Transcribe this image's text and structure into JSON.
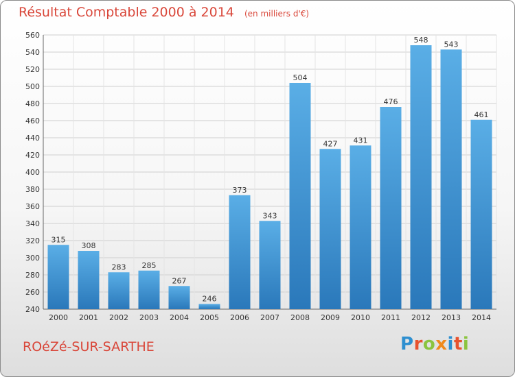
{
  "header": {
    "title": "Résultat Comptable 2000 à 2014",
    "unit": "(en milliers d'€)"
  },
  "footer": {
    "commune": "ROéZé-SUR-SARTHE",
    "logo_text": "Proxiti",
    "logo_colors": [
      "#2e8fd0",
      "#e8522e",
      "#8bc43f",
      "#f08a1c",
      "#2e8fd0",
      "#e8522e",
      "#8bc43f"
    ]
  },
  "colors": {
    "bar_light": "#5aaee6",
    "bar_dark": "#2a78ba",
    "title": "#d9473a",
    "grid": "#cfcfcf"
  },
  "chart_data": {
    "type": "bar",
    "title": "Résultat Comptable 2000 à 2014",
    "subtitle": "(en milliers d'€)",
    "categories": [
      "2000",
      "2001",
      "2002",
      "2003",
      "2004",
      "2005",
      "2006",
      "2007",
      "2008",
      "2009",
      "2010",
      "2011",
      "2012",
      "2013",
      "2014"
    ],
    "values": [
      315,
      308,
      283,
      285,
      267,
      246,
      373,
      343,
      504,
      427,
      431,
      476,
      548,
      543,
      461
    ],
    "ylim": [
      240,
      560
    ],
    "yticks": [
      240,
      260,
      280,
      300,
      320,
      340,
      360,
      380,
      400,
      420,
      440,
      460,
      480,
      500,
      520,
      540,
      560
    ],
    "grid": true,
    "data_labels": true
  }
}
